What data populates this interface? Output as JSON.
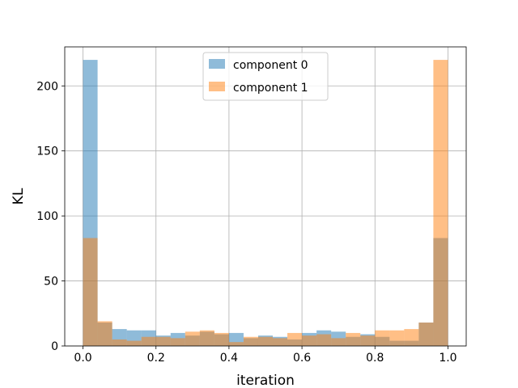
{
  "chart_data": {
    "type": "bar",
    "subtype": "overlapping-histogram",
    "title": "",
    "xlabel": "iteration",
    "ylabel": "KL",
    "xlim": [
      -0.05,
      1.05
    ],
    "ylim": [
      0,
      230
    ],
    "xticks": [
      "0.0",
      "0.2",
      "0.4",
      "0.6",
      "0.8",
      "1.0"
    ],
    "yticks": [
      "0",
      "50",
      "100",
      "150",
      "200"
    ],
    "grid": true,
    "legend_position": "top-center",
    "bin_edges": [
      0.0,
      0.04,
      0.08,
      0.12,
      0.16,
      0.2,
      0.24,
      0.28,
      0.32,
      0.36,
      0.4,
      0.44,
      0.48,
      0.52,
      0.56,
      0.6,
      0.64,
      0.68,
      0.72,
      0.76,
      0.8,
      0.84,
      0.88,
      0.92,
      0.96,
      1.0
    ],
    "series": [
      {
        "name": "component 0",
        "color": "#1f77b4",
        "alpha": 0.5,
        "values": [
          220,
          18,
          13,
          12,
          12,
          8,
          10,
          8,
          11,
          9,
          10,
          6,
          8,
          7,
          5,
          10,
          12,
          11,
          7,
          9,
          7,
          4,
          4,
          18,
          83
        ]
      },
      {
        "name": "component 1",
        "color": "#ff7f0e",
        "alpha": 0.5,
        "values": [
          83,
          19,
          5,
          4,
          7,
          7,
          6,
          11,
          12,
          10,
          3,
          7,
          7,
          6,
          10,
          8,
          9,
          6,
          10,
          8,
          12,
          12,
          13,
          18,
          220
        ]
      }
    ]
  }
}
